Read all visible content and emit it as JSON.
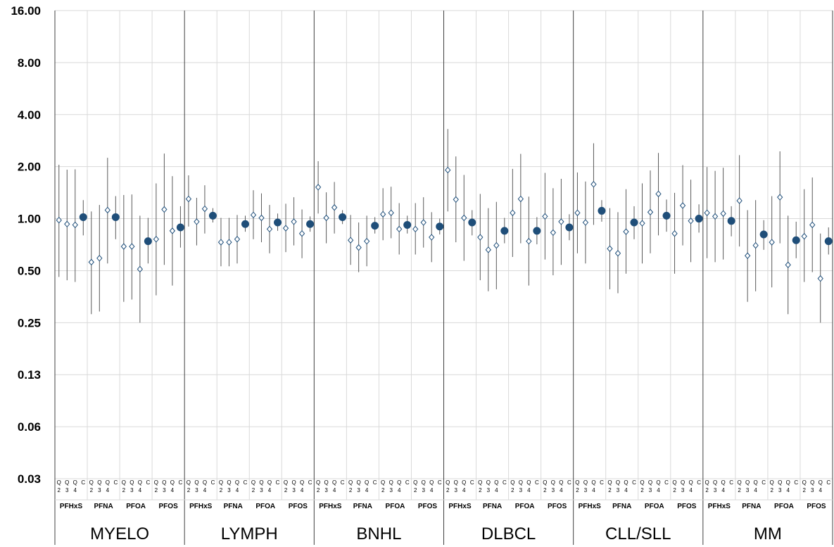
{
  "chart_data": {
    "type": "scatter",
    "title": "",
    "xlabel": "",
    "ylabel": "",
    "y_scale": "log2",
    "ylim": [
      0.03,
      16
    ],
    "y_ticks": [
      "16.00",
      "8.00",
      "4.00",
      "2.00",
      "1.00",
      "0.50",
      "0.25",
      "0.13",
      "0.06",
      "0.03"
    ],
    "grid": "on",
    "legend": "none",
    "colors": {
      "quartile_marker": "#1f4e79",
      "continuous_marker": "#1f4e79",
      "error_bar": "#595959",
      "grid": "#d9d9d9",
      "divider": "#404040"
    },
    "point_labels": [
      {
        "top": "Q",
        "bottom": "2"
      },
      {
        "top": "Q",
        "bottom": "3"
      },
      {
        "top": "Q",
        "bottom": "4"
      },
      {
        "top": "C",
        "bottom": ""
      }
    ],
    "groups": [
      {
        "name": "MYELO",
        "subgroups": [
          {
            "name": "PFHxS",
            "points": [
              {
                "label": "Q2",
                "est": 0.98,
                "lo": 0.46,
                "hi": 2.05
              },
              {
                "label": "Q3",
                "est": 0.93,
                "lo": 0.44,
                "hi": 1.92
              },
              {
                "label": "Q4",
                "est": 0.92,
                "lo": 0.43,
                "hi": 1.93
              },
              {
                "label": "C",
                "est": 1.02,
                "lo": 0.8,
                "hi": 1.28
              }
            ]
          },
          {
            "name": "PFNA",
            "points": [
              {
                "label": "Q2",
                "est": 0.56,
                "lo": 0.28,
                "hi": 1.1
              },
              {
                "label": "Q3",
                "est": 0.59,
                "lo": 0.29,
                "hi": 1.2
              },
              {
                "label": "Q4",
                "est": 1.12,
                "lo": 0.55,
                "hi": 2.25
              },
              {
                "label": "C",
                "est": 1.02,
                "lo": 0.76,
                "hi": 1.35
              }
            ]
          },
          {
            "name": "PFOA",
            "points": [
              {
                "label": "Q2",
                "est": 0.69,
                "lo": 0.33,
                "hi": 1.37
              },
              {
                "label": "Q3",
                "est": 0.69,
                "lo": 0.34,
                "hi": 1.38
              },
              {
                "label": "Q4",
                "est": 0.51,
                "lo": 0.25,
                "hi": 1.04
              },
              {
                "label": "C",
                "est": 0.74,
                "lo": 0.55,
                "hi": 1.01
              }
            ]
          },
          {
            "name": "PFOS",
            "points": [
              {
                "label": "Q2",
                "est": 0.76,
                "lo": 0.36,
                "hi": 1.6
              },
              {
                "label": "Q3",
                "est": 1.13,
                "lo": 0.54,
                "hi": 2.38
              },
              {
                "label": "Q4",
                "est": 0.85,
                "lo": 0.41,
                "hi": 1.76
              },
              {
                "label": "C",
                "est": 0.89,
                "lo": 0.68,
                "hi": 1.18
              }
            ]
          }
        ]
      },
      {
        "name": "LYMPH",
        "subgroups": [
          {
            "name": "PFHxS",
            "points": [
              {
                "label": "Q2",
                "est": 1.3,
                "lo": 0.9,
                "hi": 1.78
              },
              {
                "label": "Q3",
                "est": 0.96,
                "lo": 0.7,
                "hi": 1.32
              },
              {
                "label": "Q4",
                "est": 1.14,
                "lo": 0.82,
                "hi": 1.56
              },
              {
                "label": "C",
                "est": 1.04,
                "lo": 0.95,
                "hi": 1.15
              }
            ]
          },
          {
            "name": "PFNA",
            "points": [
              {
                "label": "Q2",
                "est": 0.73,
                "lo": 0.53,
                "hi": 1.01
              },
              {
                "label": "Q3",
                "est": 0.73,
                "lo": 0.53,
                "hi": 1.01
              },
              {
                "label": "Q4",
                "est": 0.76,
                "lo": 0.55,
                "hi": 1.05
              },
              {
                "label": "C",
                "est": 0.93,
                "lo": 0.84,
                "hi": 1.04
              }
            ]
          },
          {
            "name": "PFOA",
            "points": [
              {
                "label": "Q2",
                "est": 1.05,
                "lo": 0.76,
                "hi": 1.46
              },
              {
                "label": "Q3",
                "est": 1.01,
                "lo": 0.73,
                "hi": 1.4
              },
              {
                "label": "Q4",
                "est": 0.87,
                "lo": 0.63,
                "hi": 1.2
              },
              {
                "label": "C",
                "est": 0.95,
                "lo": 0.85,
                "hi": 1.07
              }
            ]
          },
          {
            "name": "PFOS",
            "points": [
              {
                "label": "Q2",
                "est": 0.88,
                "lo": 0.64,
                "hi": 1.22
              },
              {
                "label": "Q3",
                "est": 0.96,
                "lo": 0.7,
                "hi": 1.33
              },
              {
                "label": "Q4",
                "est": 0.82,
                "lo": 0.59,
                "hi": 1.13
              },
              {
                "label": "C",
                "est": 0.93,
                "lo": 0.84,
                "hi": 1.03
              }
            ]
          }
        ]
      },
      {
        "name": "BNHL",
        "subgroups": [
          {
            "name": "PFHxS",
            "points": [
              {
                "label": "Q2",
                "est": 1.52,
                "lo": 1.07,
                "hi": 2.15
              },
              {
                "label": "Q3",
                "est": 1.01,
                "lo": 0.72,
                "hi": 1.42
              },
              {
                "label": "Q4",
                "est": 1.16,
                "lo": 0.82,
                "hi": 1.63
              },
              {
                "label": "C",
                "est": 1.02,
                "lo": 0.93,
                "hi": 1.12
              }
            ]
          },
          {
            "name": "PFNA",
            "points": [
              {
                "label": "Q2",
                "est": 0.75,
                "lo": 0.54,
                "hi": 1.05
              },
              {
                "label": "Q3",
                "est": 0.68,
                "lo": 0.49,
                "hi": 0.95
              },
              {
                "label": "Q4",
                "est": 0.74,
                "lo": 0.53,
                "hi": 1.04
              },
              {
                "label": "C",
                "est": 0.91,
                "lo": 0.82,
                "hi": 1.02
              }
            ]
          },
          {
            "name": "PFOA",
            "points": [
              {
                "label": "Q2",
                "est": 1.06,
                "lo": 0.75,
                "hi": 1.5
              },
              {
                "label": "Q3",
                "est": 1.08,
                "lo": 0.77,
                "hi": 1.53
              },
              {
                "label": "Q4",
                "est": 0.87,
                "lo": 0.62,
                "hi": 1.23
              },
              {
                "label": "C",
                "est": 0.92,
                "lo": 0.82,
                "hi": 1.04
              }
            ]
          },
          {
            "name": "PFOS",
            "points": [
              {
                "label": "Q2",
                "est": 0.87,
                "lo": 0.62,
                "hi": 1.23
              },
              {
                "label": "Q3",
                "est": 0.95,
                "lo": 0.68,
                "hi": 1.33
              },
              {
                "label": "Q4",
                "est": 0.78,
                "lo": 0.56,
                "hi": 1.09
              },
              {
                "label": "C",
                "est": 0.9,
                "lo": 0.81,
                "hi": 1.0
              }
            ]
          }
        ]
      },
      {
        "name": "DLBCL",
        "subgroups": [
          {
            "name": "PFHxS",
            "points": [
              {
                "label": "Q2",
                "est": 1.91,
                "lo": 1.1,
                "hi": 3.3
              },
              {
                "label": "Q3",
                "est": 1.29,
                "lo": 0.73,
                "hi": 2.29
              },
              {
                "label": "Q4",
                "est": 1.01,
                "lo": 0.57,
                "hi": 1.79
              },
              {
                "label": "C",
                "est": 0.95,
                "lo": 0.8,
                "hi": 1.12
              }
            ]
          },
          {
            "name": "PFNA",
            "points": [
              {
                "label": "Q2",
                "est": 0.78,
                "lo": 0.44,
                "hi": 1.39
              },
              {
                "label": "Q3",
                "est": 0.66,
                "lo": 0.38,
                "hi": 1.15
              },
              {
                "label": "Q4",
                "est": 0.7,
                "lo": 0.39,
                "hi": 1.25
              },
              {
                "label": "C",
                "est": 0.85,
                "lo": 0.72,
                "hi": 1.01
              }
            ]
          },
          {
            "name": "PFOA",
            "points": [
              {
                "label": "Q2",
                "est": 1.08,
                "lo": 0.6,
                "hi": 1.94
              },
              {
                "label": "Q3",
                "est": 1.3,
                "lo": 0.72,
                "hi": 2.37
              },
              {
                "label": "Q4",
                "est": 0.74,
                "lo": 0.41,
                "hi": 1.34
              },
              {
                "label": "C",
                "est": 0.85,
                "lo": 0.71,
                "hi": 1.02
              }
            ]
          },
          {
            "name": "PFOS",
            "points": [
              {
                "label": "Q2",
                "est": 1.03,
                "lo": 0.58,
                "hi": 1.84
              },
              {
                "label": "Q3",
                "est": 0.83,
                "lo": 0.47,
                "hi": 1.5
              },
              {
                "label": "Q4",
                "est": 0.96,
                "lo": 0.54,
                "hi": 1.7
              },
              {
                "label": "C",
                "est": 0.89,
                "lo": 0.75,
                "hi": 1.06
              }
            ]
          }
        ]
      },
      {
        "name": "CLL/SLL",
        "subgroups": [
          {
            "name": "PFHxS",
            "points": [
              {
                "label": "Q2",
                "est": 1.08,
                "lo": 0.63,
                "hi": 1.85
              },
              {
                "label": "Q3",
                "est": 0.95,
                "lo": 0.55,
                "hi": 1.64
              },
              {
                "label": "Q4",
                "est": 1.58,
                "lo": 0.92,
                "hi": 2.73
              },
              {
                "label": "C",
                "est": 1.11,
                "lo": 0.96,
                "hi": 1.28
              }
            ]
          },
          {
            "name": "PFNA",
            "points": [
              {
                "label": "Q2",
                "est": 0.67,
                "lo": 0.39,
                "hi": 1.15
              },
              {
                "label": "Q3",
                "est": 0.63,
                "lo": 0.37,
                "hi": 1.09
              },
              {
                "label": "Q4",
                "est": 0.84,
                "lo": 0.48,
                "hi": 1.48
              },
              {
                "label": "C",
                "est": 0.95,
                "lo": 0.76,
                "hi": 1.18
              }
            ]
          },
          {
            "name": "PFOA",
            "points": [
              {
                "label": "Q2",
                "est": 0.94,
                "lo": 0.55,
                "hi": 1.6
              },
              {
                "label": "Q3",
                "est": 1.09,
                "lo": 0.63,
                "hi": 1.9
              },
              {
                "label": "Q4",
                "est": 1.39,
                "lo": 0.8,
                "hi": 2.4
              },
              {
                "label": "C",
                "est": 1.04,
                "lo": 0.84,
                "hi": 1.29
              }
            ]
          },
          {
            "name": "PFOS",
            "points": [
              {
                "label": "Q2",
                "est": 0.82,
                "lo": 0.48,
                "hi": 1.41
              },
              {
                "label": "Q3",
                "est": 1.19,
                "lo": 0.7,
                "hi": 2.04
              },
              {
                "label": "Q4",
                "est": 0.97,
                "lo": 0.56,
                "hi": 1.68
              },
              {
                "label": "C",
                "est": 1.0,
                "lo": 0.83,
                "hi": 1.21
              }
            ]
          }
        ]
      },
      {
        "name": "MM",
        "subgroups": [
          {
            "name": "PFHxS",
            "points": [
              {
                "label": "Q2",
                "est": 1.08,
                "lo": 0.59,
                "hi": 1.99
              },
              {
                "label": "Q3",
                "est": 1.03,
                "lo": 0.56,
                "hi": 1.89
              },
              {
                "label": "Q4",
                "est": 1.07,
                "lo": 0.58,
                "hi": 1.97
              },
              {
                "label": "C",
                "est": 0.97,
                "lo": 0.79,
                "hi": 1.18
              }
            ]
          },
          {
            "name": "PFNA",
            "points": [
              {
                "label": "Q2",
                "est": 1.27,
                "lo": 0.69,
                "hi": 2.33
              },
              {
                "label": "Q3",
                "est": 0.61,
                "lo": 0.33,
                "hi": 1.12
              },
              {
                "label": "Q4",
                "est": 0.7,
                "lo": 0.38,
                "hi": 1.28
              },
              {
                "label": "C",
                "est": 0.81,
                "lo": 0.66,
                "hi": 0.98
              }
            ]
          },
          {
            "name": "PFOA",
            "points": [
              {
                "label": "Q2",
                "est": 0.73,
                "lo": 0.4,
                "hi": 1.35
              },
              {
                "label": "Q3",
                "est": 1.33,
                "lo": 0.72,
                "hi": 2.45
              },
              {
                "label": "Q4",
                "est": 0.54,
                "lo": 0.28,
                "hi": 1.04
              },
              {
                "label": "C",
                "est": 0.75,
                "lo": 0.59,
                "hi": 0.96
              }
            ]
          },
          {
            "name": "PFOS",
            "points": [
              {
                "label": "Q2",
                "est": 0.79,
                "lo": 0.43,
                "hi": 1.48
              },
              {
                "label": "Q3",
                "est": 0.92,
                "lo": 0.49,
                "hi": 1.73
              },
              {
                "label": "Q4",
                "est": 0.45,
                "lo": 0.25,
                "hi": 0.82
              },
              {
                "label": "C",
                "est": 0.74,
                "lo": 0.62,
                "hi": 0.89
              }
            ]
          }
        ]
      }
    ]
  }
}
